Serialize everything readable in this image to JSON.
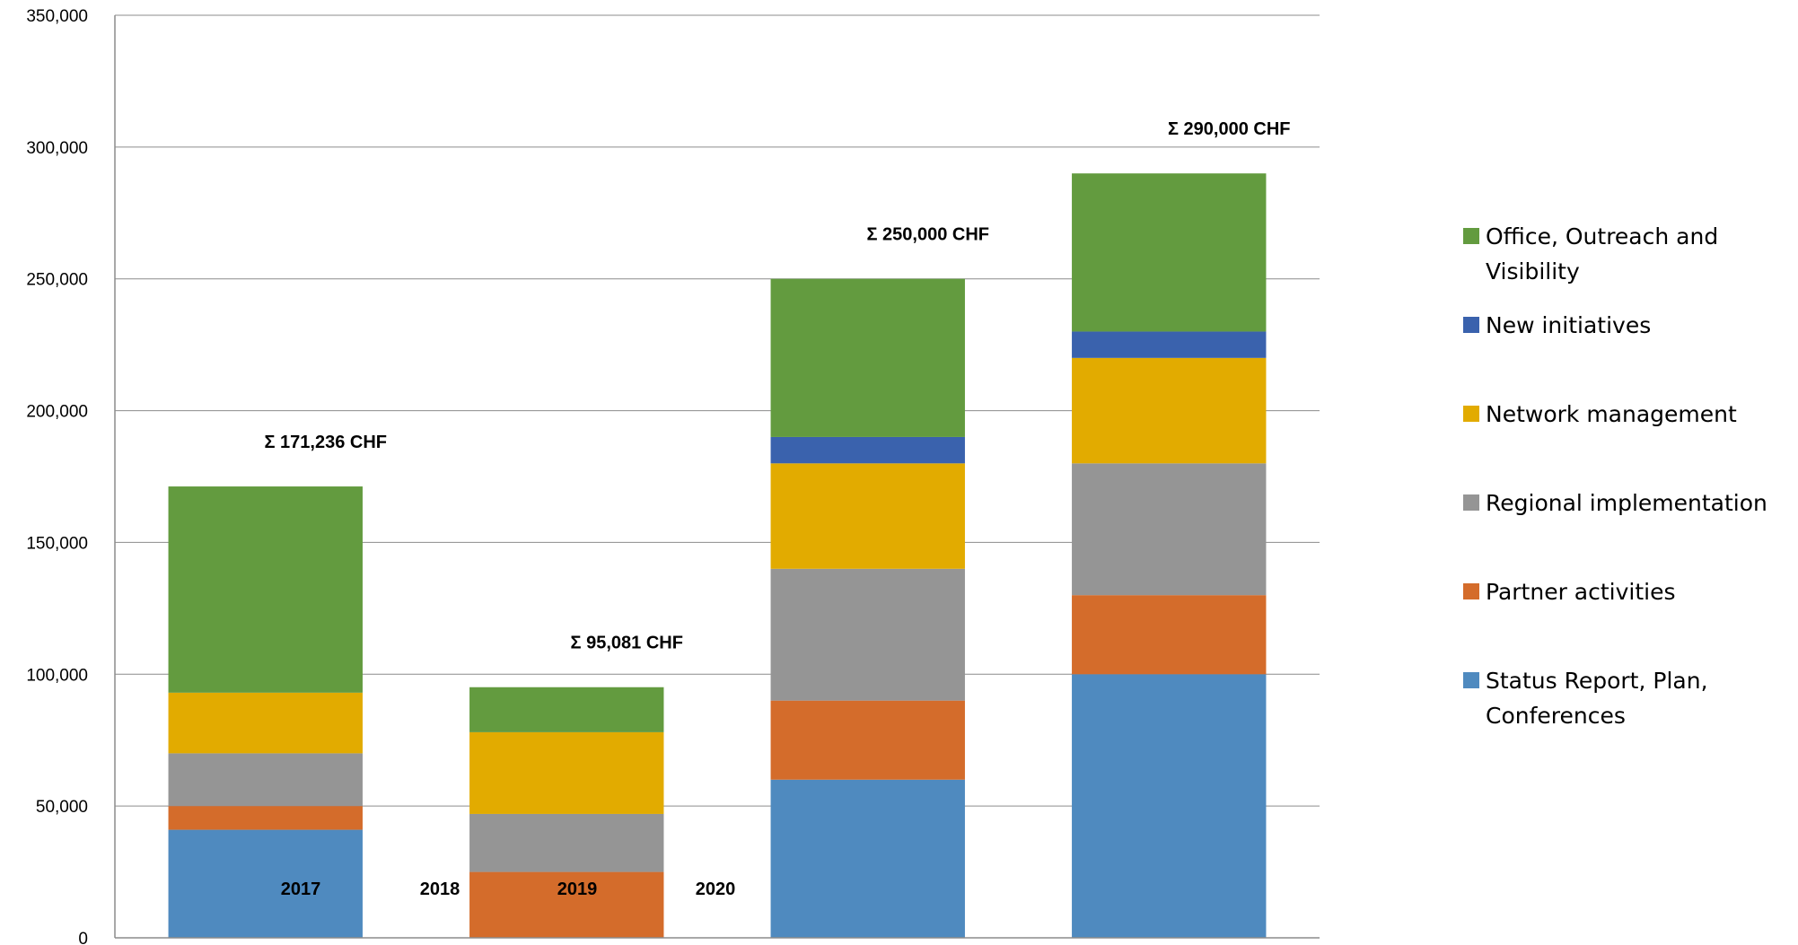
{
  "chart_data": {
    "type": "bar",
    "stacked": true,
    "categories": [
      "2017",
      "2018",
      "2019",
      "2020"
    ],
    "series": [
      {
        "name": "Status Report, Plan, Conferences",
        "color": "#4f8abf",
        "values": [
          41000,
          0,
          60000,
          100000
        ]
      },
      {
        "name": "Partner activities",
        "color": "#d46c2b",
        "values": [
          9000,
          25000,
          30000,
          30000
        ]
      },
      {
        "name": "Regional implementation",
        "color": "#959595",
        "values": [
          20000,
          22000,
          50000,
          50000
        ]
      },
      {
        "name": "Network management",
        "color": "#e2ab00",
        "values": [
          23000,
          31000,
          40000,
          40000
        ]
      },
      {
        "name": "New initiatives",
        "color": "#3a62ad",
        "values": [
          0,
          0,
          10000,
          10000
        ]
      },
      {
        "name": "Office, Outreach and Visibility",
        "color": "#639b3f",
        "values": [
          78236,
          17081,
          60000,
          60000
        ]
      }
    ],
    "totals_labels": [
      "Σ 171,236 CHF",
      "Σ 95,081 CHF",
      "Σ 250,000 CHF",
      "Σ 290,000 CHF"
    ],
    "ylim": [
      0,
      350000
    ],
    "yticks": [
      0,
      50000,
      100000,
      150000,
      200000,
      250000,
      300000,
      350000
    ],
    "ytick_labels": [
      "0",
      "50,000",
      "100,000",
      "150,000",
      "200,000",
      "250,000",
      "300,000",
      "350,000"
    ],
    "grid": true,
    "legend_position": "right",
    "title": "",
    "xlabel": "",
    "ylabel": ""
  }
}
